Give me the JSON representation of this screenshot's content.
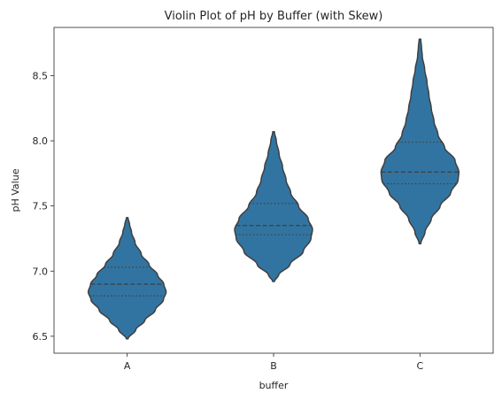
{
  "chart_data": {
    "type": "violin",
    "title": "Violin Plot of pH by Buffer (with Skew)",
    "xlabel": "buffer",
    "ylabel": "pH Value",
    "categories": [
      "A",
      "B",
      "C"
    ],
    "ylim": [
      6.37,
      8.87
    ],
    "yticks": [
      6.5,
      7.0,
      7.5,
      8.0,
      8.5
    ],
    "ytick_labels": [
      "6.5",
      "7.0",
      "7.5",
      "8.0",
      "8.5"
    ],
    "grid": false,
    "fill_color": "#3274a1",
    "edge_color": "#3f3f3f",
    "violins": [
      {
        "category": "A",
        "min": 6.48,
        "max": 7.41,
        "q1": 6.81,
        "median": 6.9,
        "q3": 7.03,
        "profile": [
          [
            6.48,
            0.02
          ],
          [
            6.55,
            0.22
          ],
          [
            6.62,
            0.45
          ],
          [
            6.7,
            0.72
          ],
          [
            6.78,
            0.93
          ],
          [
            6.84,
            1.0
          ],
          [
            6.9,
            0.94
          ],
          [
            6.97,
            0.78
          ],
          [
            7.05,
            0.56
          ],
          [
            7.13,
            0.36
          ],
          [
            7.22,
            0.2
          ],
          [
            7.3,
            0.11
          ],
          [
            7.36,
            0.06
          ],
          [
            7.41,
            0.02
          ]
        ]
      },
      {
        "category": "B",
        "min": 6.92,
        "max": 8.07,
        "q1": 7.28,
        "median": 7.35,
        "q3": 7.52,
        "profile": [
          [
            6.92,
            0.02
          ],
          [
            6.97,
            0.13
          ],
          [
            7.05,
            0.42
          ],
          [
            7.15,
            0.76
          ],
          [
            7.25,
            0.96
          ],
          [
            7.32,
            1.0
          ],
          [
            7.4,
            0.89
          ],
          [
            7.5,
            0.64
          ],
          [
            7.6,
            0.44
          ],
          [
            7.7,
            0.32
          ],
          [
            7.8,
            0.23
          ],
          [
            7.9,
            0.14
          ],
          [
            8.0,
            0.07
          ],
          [
            8.07,
            0.02
          ]
        ]
      },
      {
        "category": "C",
        "min": 7.21,
        "max": 8.78,
        "q1": 7.67,
        "median": 7.76,
        "q3": 7.99,
        "profile": [
          [
            7.21,
            0.02
          ],
          [
            7.3,
            0.13
          ],
          [
            7.4,
            0.29
          ],
          [
            7.5,
            0.52
          ],
          [
            7.6,
            0.79
          ],
          [
            7.7,
            0.98
          ],
          [
            7.76,
            1.0
          ],
          [
            7.85,
            0.9
          ],
          [
            7.95,
            0.63
          ],
          [
            8.05,
            0.46
          ],
          [
            8.15,
            0.36
          ],
          [
            8.25,
            0.29
          ],
          [
            8.35,
            0.23
          ],
          [
            8.45,
            0.18
          ],
          [
            8.55,
            0.12
          ],
          [
            8.65,
            0.06
          ],
          [
            8.72,
            0.04
          ],
          [
            8.78,
            0.02
          ]
        ]
      }
    ]
  }
}
